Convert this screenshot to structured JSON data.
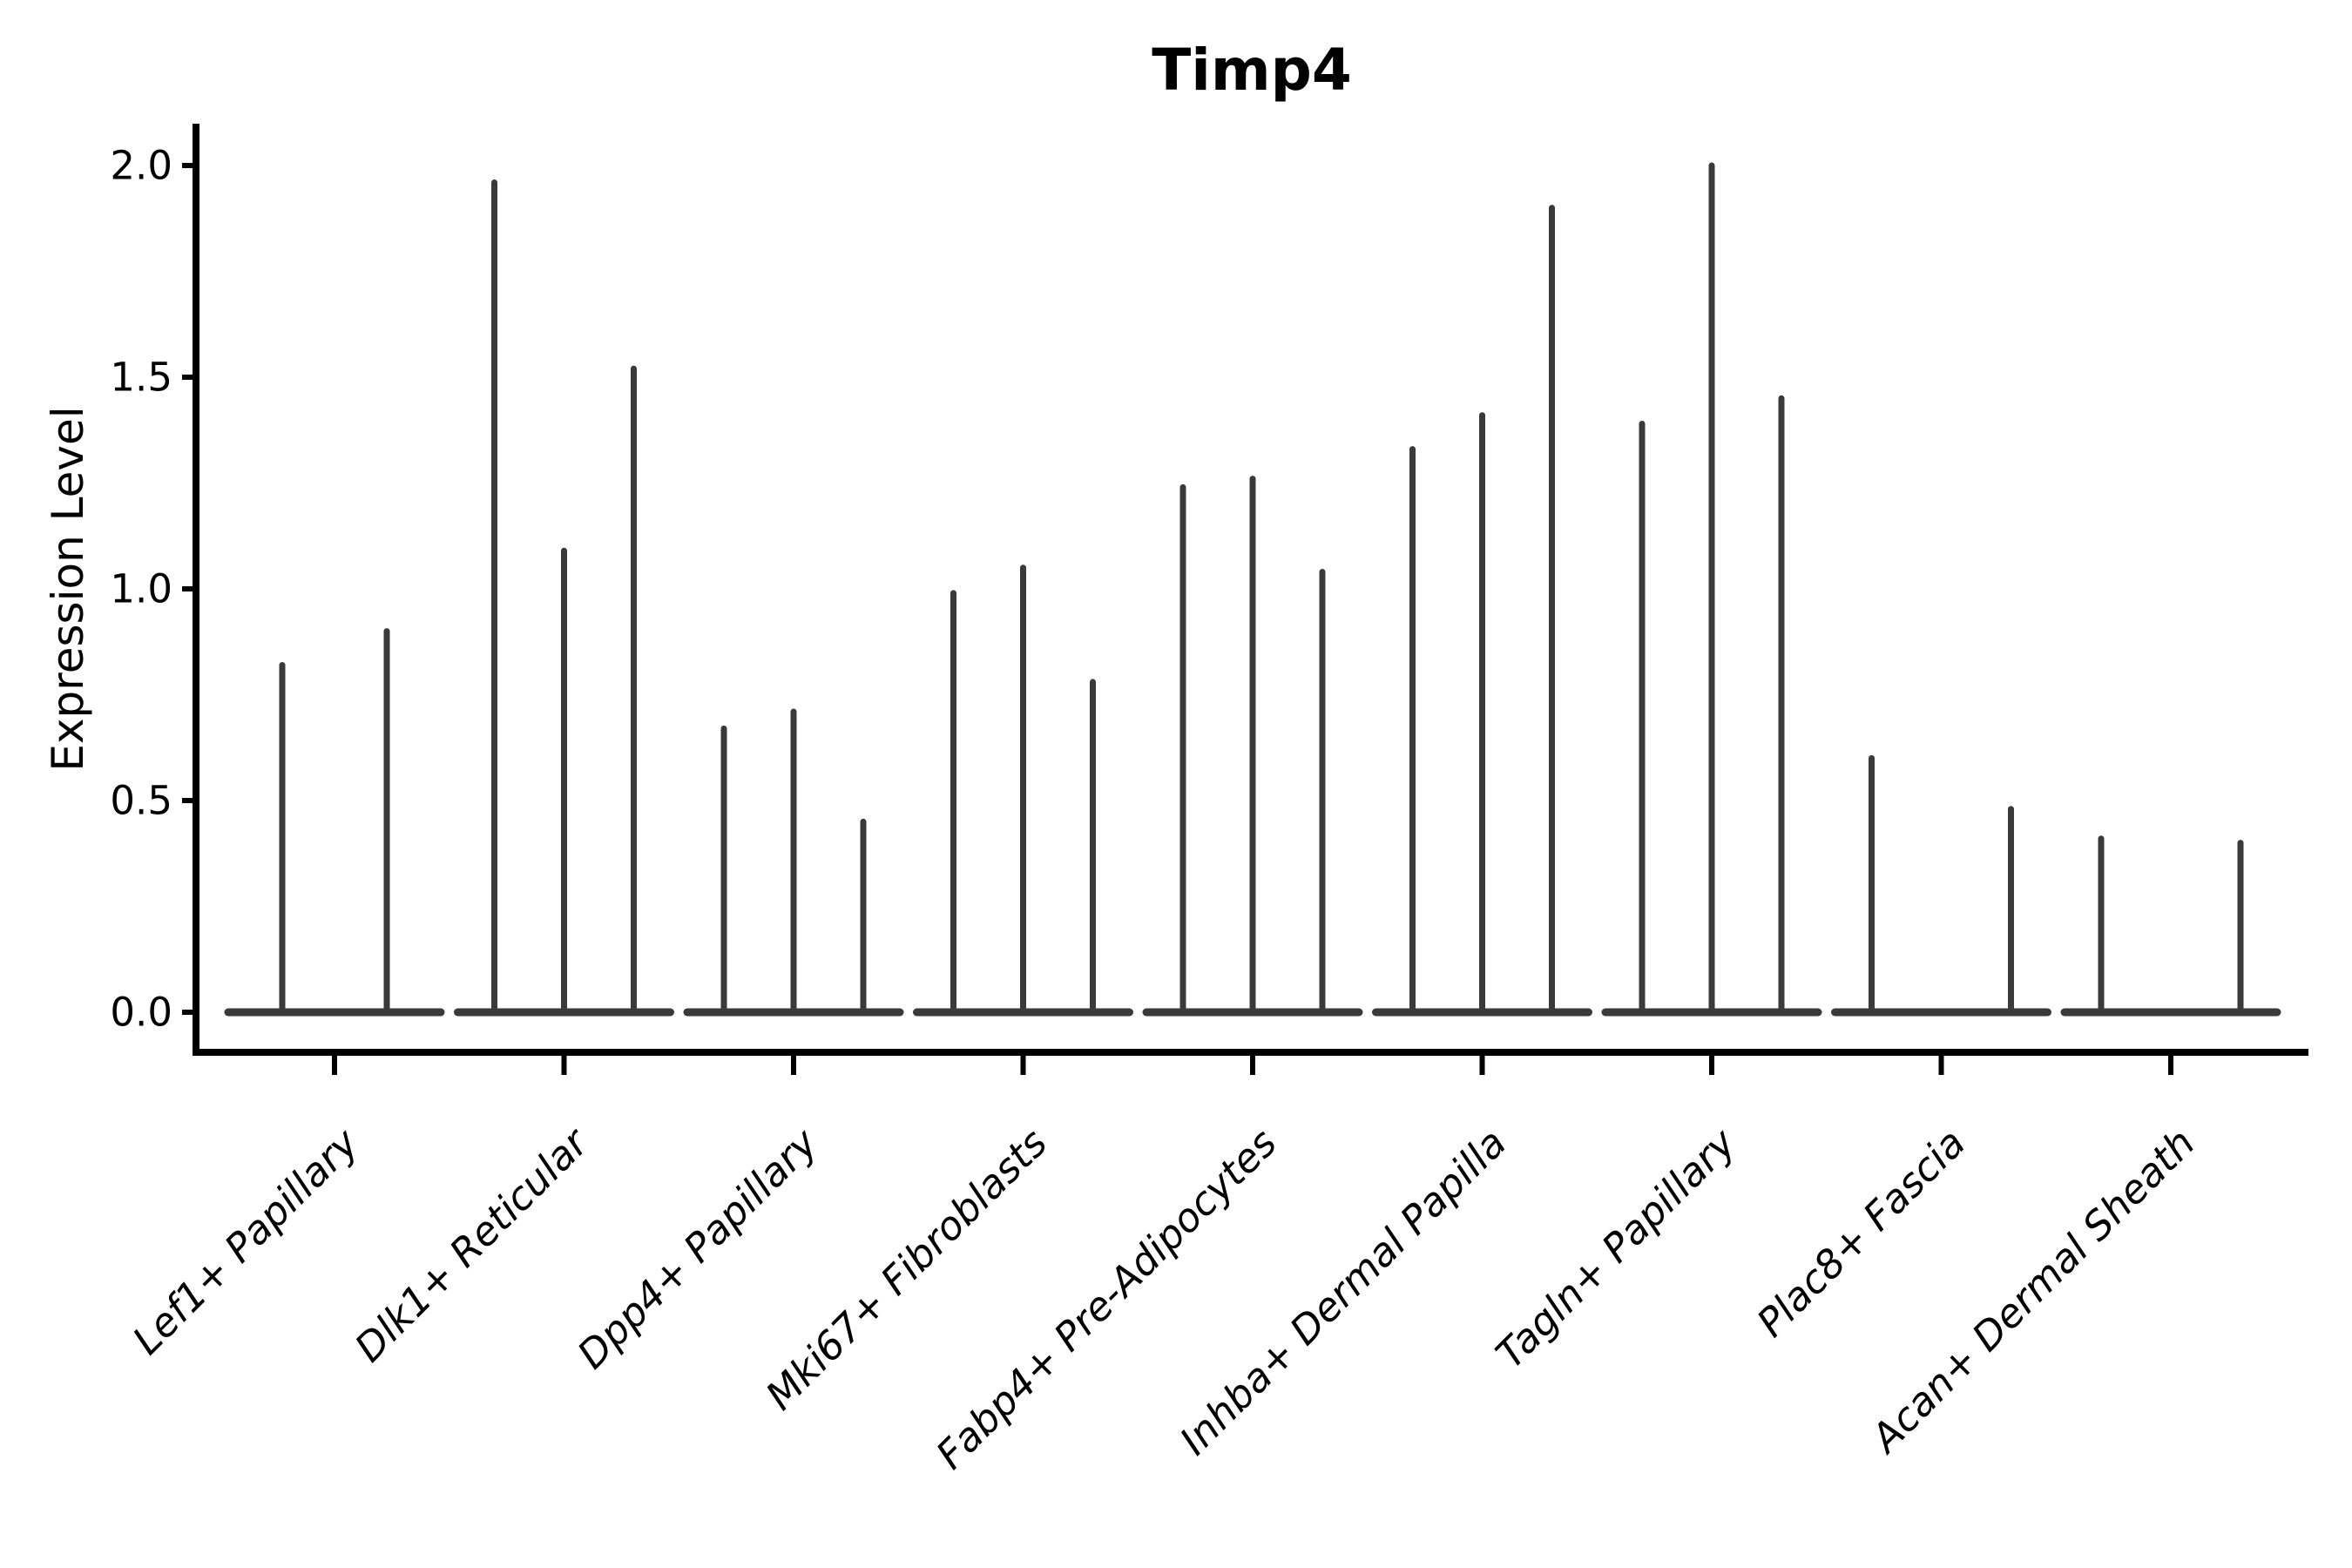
{
  "title": "Timp4",
  "y_axis": {
    "label": "Expression Level",
    "tick_labels": [
      "0.0",
      "0.5",
      "1.0",
      "1.5",
      "2.0"
    ]
  },
  "chart_data": {
    "type": "violin",
    "title": "Timp4",
    "xlabel": "",
    "ylabel": "Expression Level",
    "ylim": [
      0.0,
      2.0
    ],
    "yticks": [
      0.0,
      0.5,
      1.0,
      1.5,
      2.0
    ],
    "grid": false,
    "legend": "none",
    "violin_style": "narrow spikes rising from flat bases at zero",
    "violin_color": "#3a3a3a",
    "axis_color": "#000000",
    "categories": [
      "Lef1+ Papillary",
      "Dlk1+ Reticular",
      "Dpp4+ Papillary",
      "Mki67+ Fibroblasts",
      "Fabp4+ Pre-Adipocytes",
      "Inhba+ Dermal Papilla",
      "Tagln+ Papillary",
      "Plac8+ Fascia",
      "Acan+ Dermal Sheath"
    ],
    "groups": [
      {
        "category": "Lef1+ Papillary",
        "violin_max": [
          0.82,
          0.9
        ]
      },
      {
        "category": "Dlk1+ Reticular",
        "violin_max": [
          1.96,
          1.09,
          1.52
        ]
      },
      {
        "category": "Dpp4+ Papillary",
        "violin_max": [
          0.67,
          0.71,
          0.45
        ]
      },
      {
        "category": "Mki67+ Fibroblasts",
        "violin_max": [
          0.99,
          1.05,
          0.78
        ]
      },
      {
        "category": "Fabp4+ Pre-Adipocytes",
        "violin_max": [
          1.24,
          1.26,
          1.04
        ]
      },
      {
        "category": "Inhba+ Dermal Papilla",
        "violin_max": [
          1.33,
          1.41,
          1.9
        ]
      },
      {
        "category": "Tagln+ Papillary",
        "violin_max": [
          1.39,
          2.0,
          1.45
        ]
      },
      {
        "category": "Plac8+ Fascia",
        "violin_max": [
          0.6,
          null,
          0.48
        ]
      },
      {
        "category": "Acan+ Dermal Sheath",
        "violin_max": [
          0.41,
          null,
          0.4
        ]
      }
    ]
  }
}
